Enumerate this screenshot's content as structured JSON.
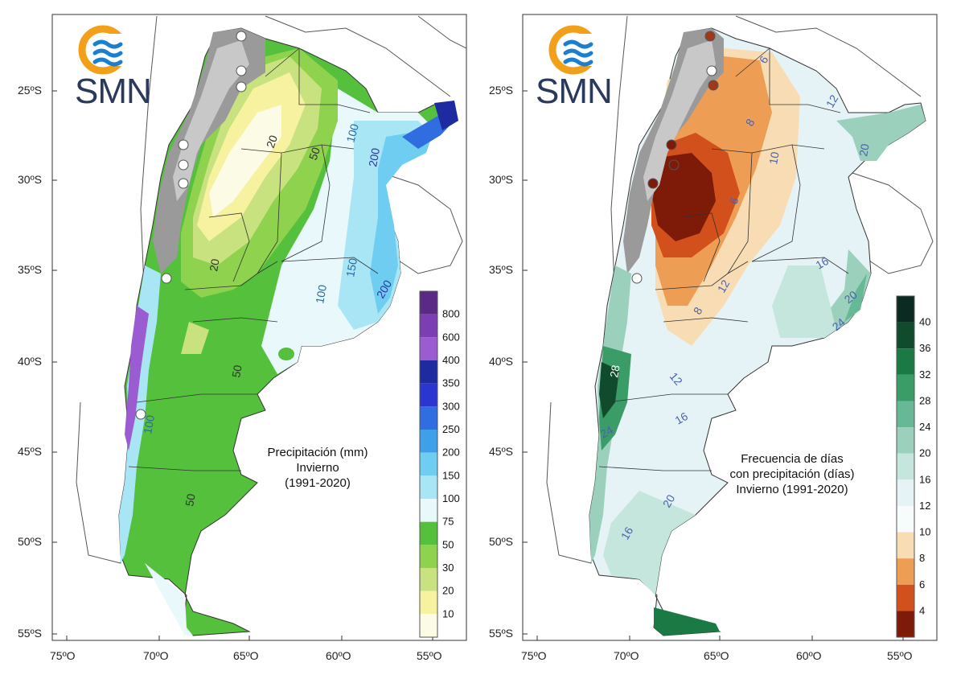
{
  "logo": {
    "text": "SMN",
    "ring_color": "#f2a019",
    "wave_color": "#1b7fd0"
  },
  "axes": {
    "lat_labels": [
      "25ºS",
      "30ºS",
      "35ºS",
      "40ºS",
      "45ºS",
      "50ºS",
      "55ºS"
    ],
    "lon_labels": [
      "75ºO",
      "70ºO",
      "65ºO",
      "60ºO",
      "55ºO"
    ]
  },
  "maps": [
    {
      "id": "precip",
      "title_lines": [
        "Precipitación (mm)",
        "Invierno",
        "(1991-2020)"
      ],
      "legend": {
        "labels": [
          "800",
          "600",
          "400",
          "350",
          "300",
          "250",
          "200",
          "150",
          "100",
          "75",
          "50",
          "30",
          "20",
          "10"
        ],
        "colors": [
          "#5b2a86",
          "#7b3fb3",
          "#9b5bd1",
          "#1e2aa0",
          "#2b36d1",
          "#2f6de0",
          "#3fa0ea",
          "#6fcdf2",
          "#a8e6f5",
          "#e8f8fb",
          "#55c03c",
          "#8fd24e",
          "#c7e27e",
          "#f6f2a0",
          "#fcfbe6"
        ]
      },
      "contour_labels": [
        "20",
        "50",
        "100",
        "200",
        "100",
        "150",
        "200",
        "20",
        "50",
        "50",
        "100",
        "50"
      ]
    },
    {
      "id": "freq",
      "title_lines": [
        "Frecuencia de días",
        "con precipitación (días)",
        "Invierno (1991-2020)"
      ],
      "legend": {
        "labels": [
          "40",
          "36",
          "32",
          "28",
          "24",
          "20",
          "16",
          "12",
          "10",
          "8",
          "6",
          "4"
        ],
        "colors": [
          "#0b2a22",
          "#0f4b2c",
          "#1b7a44",
          "#3a9c67",
          "#67b995",
          "#9ad0bc",
          "#c5e6dd",
          "#e6f3f6",
          "#f6fbfc",
          "#f8ddb4",
          "#ee9d55",
          "#d2501b",
          "#7e1a08"
        ]
      },
      "contour_labels": [
        "6",
        "12",
        "8",
        "10",
        "20",
        "6",
        "8",
        "16",
        "12",
        "20",
        "24",
        "8",
        "12",
        "16",
        "24",
        "20",
        "16",
        "28"
      ]
    }
  ]
}
